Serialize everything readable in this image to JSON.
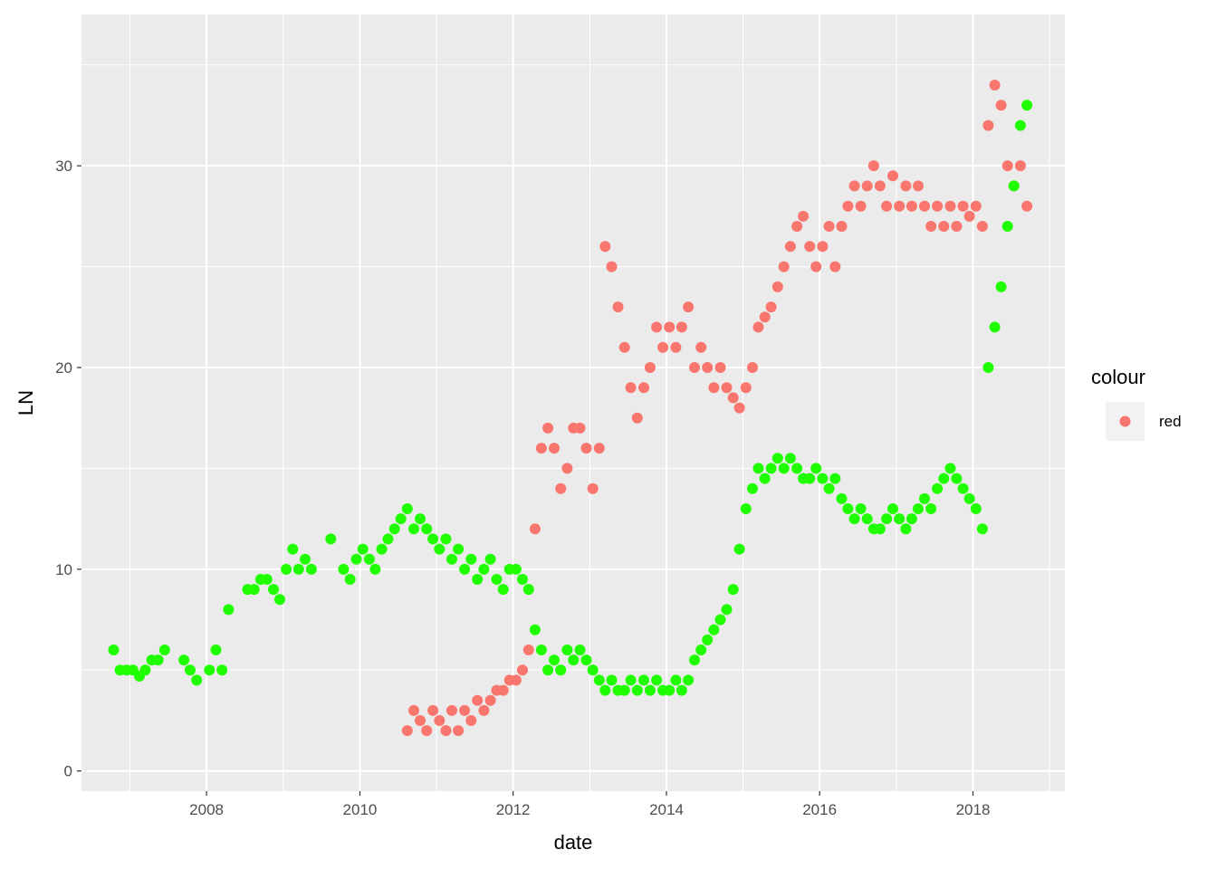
{
  "chart_data": {
    "type": "scatter",
    "title": "",
    "xlabel": "date",
    "ylabel": "LN",
    "xlim": [
      "2006-05-15",
      "2019-03-15"
    ],
    "ylim": [
      -1,
      37.5
    ],
    "x_ticks": [
      "2008",
      "2010",
      "2012",
      "2014",
      "2016",
      "2018"
    ],
    "y_ticks": [
      "0",
      "10",
      "20",
      "30"
    ],
    "grid": true,
    "legend": {
      "title": "colour",
      "position": "right",
      "entries": [
        {
          "label": "red",
          "color": "#F8766D"
        }
      ]
    },
    "series": [
      {
        "name": "red",
        "color": "#F8766D",
        "points": [
          [
            "2010-08-15",
            2.0
          ],
          [
            "2010-09-15",
            3.0
          ],
          [
            "2010-10-15",
            2.5
          ],
          [
            "2010-11-15",
            2.0
          ],
          [
            "2010-12-15",
            3.0
          ],
          [
            "2011-01-15",
            2.5
          ],
          [
            "2011-02-15",
            2.0
          ],
          [
            "2011-03-15",
            3.0
          ],
          [
            "2011-04-15",
            2.0
          ],
          [
            "2011-05-15",
            3.0
          ],
          [
            "2011-06-15",
            2.5
          ],
          [
            "2011-07-15",
            3.5
          ],
          [
            "2011-08-15",
            3.0
          ],
          [
            "2011-09-15",
            3.5
          ],
          [
            "2011-10-15",
            4.0
          ],
          [
            "2011-11-15",
            4.0
          ],
          [
            "2011-12-15",
            4.5
          ],
          [
            "2012-01-15",
            4.5
          ],
          [
            "2012-02-15",
            5.0
          ],
          [
            "2012-03-15",
            6.0
          ],
          [
            "2012-04-15",
            12.0
          ],
          [
            "2012-05-15",
            16.0
          ],
          [
            "2012-06-15",
            17.0
          ],
          [
            "2012-07-15",
            16.0
          ],
          [
            "2012-08-15",
            14.0
          ],
          [
            "2012-09-15",
            15.0
          ],
          [
            "2012-10-15",
            17.0
          ],
          [
            "2012-11-15",
            17.0
          ],
          [
            "2012-12-15",
            16.0
          ],
          [
            "2013-01-15",
            14.0
          ],
          [
            "2013-02-15",
            16.0
          ],
          [
            "2013-03-15",
            26.0
          ],
          [
            "2013-04-15",
            25.0
          ],
          [
            "2013-05-15",
            23.0
          ],
          [
            "2013-06-15",
            21.0
          ],
          [
            "2013-07-15",
            19.0
          ],
          [
            "2013-08-15",
            17.5
          ],
          [
            "2013-09-15",
            19.0
          ],
          [
            "2013-10-15",
            20.0
          ],
          [
            "2013-11-15",
            22.0
          ],
          [
            "2013-12-15",
            21.0
          ],
          [
            "2014-01-15",
            22.0
          ],
          [
            "2014-02-15",
            21.0
          ],
          [
            "2014-03-15",
            22.0
          ],
          [
            "2014-04-15",
            23.0
          ],
          [
            "2014-05-15",
            20.0
          ],
          [
            "2014-06-15",
            21.0
          ],
          [
            "2014-07-15",
            20.0
          ],
          [
            "2014-08-15",
            19.0
          ],
          [
            "2014-09-15",
            20.0
          ],
          [
            "2014-10-15",
            19.0
          ],
          [
            "2014-11-15",
            18.5
          ],
          [
            "2014-12-15",
            18.0
          ],
          [
            "2015-01-15",
            19.0
          ],
          [
            "2015-02-15",
            20.0
          ],
          [
            "2015-03-15",
            22.0
          ],
          [
            "2015-04-15",
            22.5
          ],
          [
            "2015-05-15",
            23.0
          ],
          [
            "2015-06-15",
            24.0
          ],
          [
            "2015-07-15",
            25.0
          ],
          [
            "2015-08-15",
            26.0
          ],
          [
            "2015-09-15",
            27.0
          ],
          [
            "2015-10-15",
            27.5
          ],
          [
            "2015-11-15",
            26.0
          ],
          [
            "2015-12-15",
            25.0
          ],
          [
            "2016-01-15",
            26.0
          ],
          [
            "2016-02-15",
            27.0
          ],
          [
            "2016-03-15",
            25.0
          ],
          [
            "2016-04-15",
            27.0
          ],
          [
            "2016-05-15",
            28.0
          ],
          [
            "2016-06-15",
            29.0
          ],
          [
            "2016-07-15",
            28.0
          ],
          [
            "2016-08-15",
            29.0
          ],
          [
            "2016-09-15",
            30.0
          ],
          [
            "2016-10-15",
            29.0
          ],
          [
            "2016-11-15",
            28.0
          ],
          [
            "2016-12-15",
            29.5
          ],
          [
            "2017-01-15",
            28.0
          ],
          [
            "2017-02-15",
            29.0
          ],
          [
            "2017-03-15",
            28.0
          ],
          [
            "2017-04-15",
            29.0
          ],
          [
            "2017-05-15",
            28.0
          ],
          [
            "2017-06-15",
            27.0
          ],
          [
            "2017-07-15",
            28.0
          ],
          [
            "2017-08-15",
            27.0
          ],
          [
            "2017-09-15",
            28.0
          ],
          [
            "2017-10-15",
            27.0
          ],
          [
            "2017-11-15",
            28.0
          ],
          [
            "2017-12-15",
            27.5
          ],
          [
            "2018-01-15",
            28.0
          ],
          [
            "2018-02-15",
            27.0
          ],
          [
            "2018-03-15",
            32.0
          ],
          [
            "2018-04-15",
            34.0
          ],
          [
            "2018-05-15",
            33.0
          ],
          [
            "2018-06-15",
            30.0
          ],
          [
            "2018-07-15",
            29.0
          ],
          [
            "2018-08-15",
            30.0
          ],
          [
            "2018-09-15",
            28.0
          ]
        ]
      },
      {
        "name": "",
        "color": "#1FFF00",
        "points": [
          [
            "2006-10-15",
            6.0
          ],
          [
            "2006-11-15",
            5.0
          ],
          [
            "2006-12-15",
            5.0
          ],
          [
            "2007-01-15",
            5.0
          ],
          [
            "2007-02-15",
            4.7
          ],
          [
            "2007-03-15",
            5.0
          ],
          [
            "2007-04-15",
            5.5
          ],
          [
            "2007-05-15",
            5.5
          ],
          [
            "2007-06-15",
            6.0
          ],
          [
            "2007-09-15",
            5.5
          ],
          [
            "2007-10-15",
            5.0
          ],
          [
            "2007-11-15",
            4.5
          ],
          [
            "2008-01-15",
            5.0
          ],
          [
            "2008-02-15",
            6.0
          ],
          [
            "2008-03-15",
            5.0
          ],
          [
            "2008-04-15",
            8.0
          ],
          [
            "2008-07-15",
            9.0
          ],
          [
            "2008-08-15",
            9.0
          ],
          [
            "2008-09-15",
            9.5
          ],
          [
            "2008-10-15",
            9.5
          ],
          [
            "2008-11-15",
            9.0
          ],
          [
            "2008-12-15",
            8.5
          ],
          [
            "2009-01-15",
            10.0
          ],
          [
            "2009-02-15",
            11.0
          ],
          [
            "2009-03-15",
            10.0
          ],
          [
            "2009-04-15",
            10.5
          ],
          [
            "2009-05-15",
            10.0
          ],
          [
            "2009-08-15",
            11.5
          ],
          [
            "2009-10-15",
            10.0
          ],
          [
            "2009-11-15",
            9.5
          ],
          [
            "2009-12-15",
            10.5
          ],
          [
            "2010-01-15",
            11.0
          ],
          [
            "2010-02-15",
            10.5
          ],
          [
            "2010-03-15",
            10.0
          ],
          [
            "2010-04-15",
            11.0
          ],
          [
            "2010-05-15",
            11.5
          ],
          [
            "2010-06-15",
            12.0
          ],
          [
            "2010-07-15",
            12.5
          ],
          [
            "2010-08-15",
            13.0
          ],
          [
            "2010-09-15",
            12.0
          ],
          [
            "2010-10-15",
            12.5
          ],
          [
            "2010-11-15",
            12.0
          ],
          [
            "2010-12-15",
            11.5
          ],
          [
            "2011-01-15",
            11.0
          ],
          [
            "2011-02-15",
            11.5
          ],
          [
            "2011-03-15",
            10.5
          ],
          [
            "2011-04-15",
            11.0
          ],
          [
            "2011-05-15",
            10.0
          ],
          [
            "2011-06-15",
            10.5
          ],
          [
            "2011-07-15",
            9.5
          ],
          [
            "2011-08-15",
            10.0
          ],
          [
            "2011-09-15",
            10.5
          ],
          [
            "2011-10-15",
            9.5
          ],
          [
            "2011-11-15",
            9.0
          ],
          [
            "2011-12-15",
            10.0
          ],
          [
            "2012-01-15",
            10.0
          ],
          [
            "2012-02-15",
            9.5
          ],
          [
            "2012-03-15",
            9.0
          ],
          [
            "2012-04-15",
            7.0
          ],
          [
            "2012-05-15",
            6.0
          ],
          [
            "2012-06-15",
            5.0
          ],
          [
            "2012-07-15",
            5.5
          ],
          [
            "2012-08-15",
            5.0
          ],
          [
            "2012-09-15",
            6.0
          ],
          [
            "2012-10-15",
            5.5
          ],
          [
            "2012-11-15",
            6.0
          ],
          [
            "2012-12-15",
            5.5
          ],
          [
            "2013-01-15",
            5.0
          ],
          [
            "2013-02-15",
            4.5
          ],
          [
            "2013-03-15",
            4.0
          ],
          [
            "2013-04-15",
            4.5
          ],
          [
            "2013-05-15",
            4.0
          ],
          [
            "2013-06-15",
            4.0
          ],
          [
            "2013-07-15",
            4.5
          ],
          [
            "2013-08-15",
            4.0
          ],
          [
            "2013-09-15",
            4.5
          ],
          [
            "2013-10-15",
            4.0
          ],
          [
            "2013-11-15",
            4.5
          ],
          [
            "2013-12-15",
            4.0
          ],
          [
            "2014-01-15",
            4.0
          ],
          [
            "2014-02-15",
            4.5
          ],
          [
            "2014-03-15",
            4.0
          ],
          [
            "2014-04-15",
            4.5
          ],
          [
            "2014-05-15",
            5.5
          ],
          [
            "2014-06-15",
            6.0
          ],
          [
            "2014-07-15",
            6.5
          ],
          [
            "2014-08-15",
            7.0
          ],
          [
            "2014-09-15",
            7.5
          ],
          [
            "2014-10-15",
            8.0
          ],
          [
            "2014-11-15",
            9.0
          ],
          [
            "2014-12-15",
            11.0
          ],
          [
            "2015-01-15",
            13.0
          ],
          [
            "2015-02-15",
            14.0
          ],
          [
            "2015-03-15",
            15.0
          ],
          [
            "2015-04-15",
            14.5
          ],
          [
            "2015-05-15",
            15.0
          ],
          [
            "2015-06-15",
            15.5
          ],
          [
            "2015-07-15",
            15.0
          ],
          [
            "2015-08-15",
            15.5
          ],
          [
            "2015-09-15",
            15.0
          ],
          [
            "2015-10-15",
            14.5
          ],
          [
            "2015-11-15",
            14.5
          ],
          [
            "2015-12-15",
            15.0
          ],
          [
            "2016-01-15",
            14.5
          ],
          [
            "2016-02-15",
            14.0
          ],
          [
            "2016-03-15",
            14.5
          ],
          [
            "2016-04-15",
            13.5
          ],
          [
            "2016-05-15",
            13.0
          ],
          [
            "2016-06-15",
            12.5
          ],
          [
            "2016-07-15",
            13.0
          ],
          [
            "2016-08-15",
            12.5
          ],
          [
            "2016-09-15",
            12.0
          ],
          [
            "2016-10-15",
            12.0
          ],
          [
            "2016-11-15",
            12.5
          ],
          [
            "2016-12-15",
            13.0
          ],
          [
            "2017-01-15",
            12.5
          ],
          [
            "2017-02-15",
            12.0
          ],
          [
            "2017-03-15",
            12.5
          ],
          [
            "2017-04-15",
            13.0
          ],
          [
            "2017-05-15",
            13.5
          ],
          [
            "2017-06-15",
            13.0
          ],
          [
            "2017-07-15",
            14.0
          ],
          [
            "2017-08-15",
            14.5
          ],
          [
            "2017-09-15",
            15.0
          ],
          [
            "2017-10-15",
            14.5
          ],
          [
            "2017-11-15",
            14.0
          ],
          [
            "2017-12-15",
            13.5
          ],
          [
            "2018-01-15",
            13.0
          ],
          [
            "2018-02-15",
            12.0
          ],
          [
            "2018-03-15",
            20.0
          ],
          [
            "2018-04-15",
            22.0
          ],
          [
            "2018-05-15",
            24.0
          ],
          [
            "2018-06-15",
            27.0
          ],
          [
            "2018-07-15",
            29.0
          ],
          [
            "2018-08-15",
            32.0
          ],
          [
            "2018-09-15",
            33.0
          ]
        ]
      }
    ]
  }
}
